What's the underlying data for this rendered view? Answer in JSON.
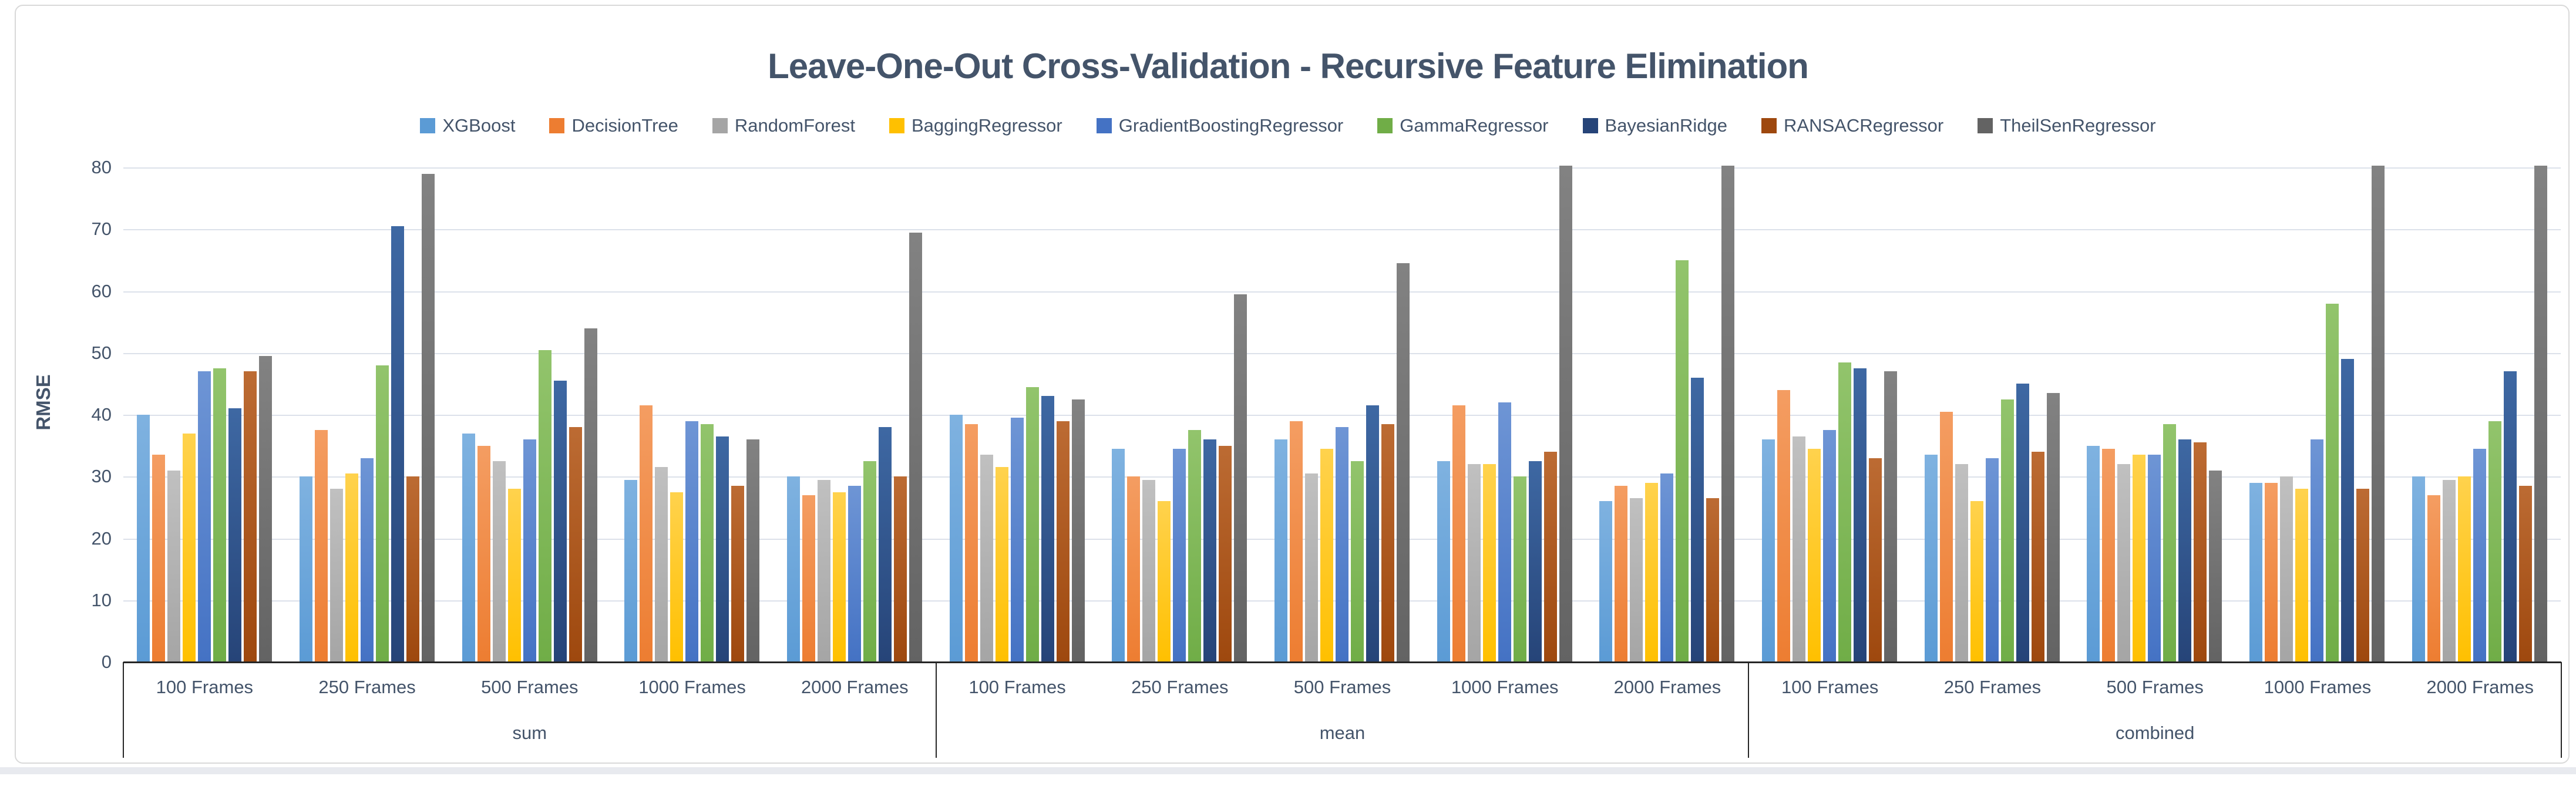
{
  "colors": {
    "text": "#44546A",
    "grid": "#DCE1EA",
    "axis": "#262626",
    "frame_border": "#D9D9D9",
    "background": "#FFFFFF"
  },
  "chart_data": {
    "type": "bar",
    "title": "Leave-One-Out Cross-Validation - Recursive Feature Elimination",
    "xlabel": "",
    "ylabel": "RMSE",
    "ylim": [
      0,
      80
    ],
    "yticks": [
      0,
      10,
      20,
      30,
      40,
      50,
      60,
      70,
      80
    ],
    "grid": true,
    "legend_position": "top",
    "sections": [
      {
        "label": "sum",
        "span": 5
      },
      {
        "label": "mean",
        "span": 5
      },
      {
        "label": "combined",
        "span": 5
      }
    ],
    "groups": [
      {
        "section": "sum",
        "label": "100 Frames"
      },
      {
        "section": "sum",
        "label": "250 Frames"
      },
      {
        "section": "sum",
        "label": "500 Frames"
      },
      {
        "section": "sum",
        "label": "1000 Frames"
      },
      {
        "section": "sum",
        "label": "2000 Frames"
      },
      {
        "section": "mean",
        "label": "100 Frames"
      },
      {
        "section": "mean",
        "label": "250 Frames"
      },
      {
        "section": "mean",
        "label": "500 Frames"
      },
      {
        "section": "mean",
        "label": "1000 Frames"
      },
      {
        "section": "mean",
        "label": "2000 Frames"
      },
      {
        "section": "combined",
        "label": "100 Frames"
      },
      {
        "section": "combined",
        "label": "250 Frames"
      },
      {
        "section": "combined",
        "label": "500 Frames"
      },
      {
        "section": "combined",
        "label": "1000 Frames"
      },
      {
        "section": "combined",
        "label": "2000 Frames"
      }
    ],
    "series": [
      {
        "name": "XGBoost",
        "color": "#5B9BD5",
        "color_light": "#7FB2E0",
        "values": [
          40,
          30,
          37,
          29.5,
          30,
          40,
          34.5,
          36,
          32.5,
          26,
          36,
          33.5,
          35,
          29,
          30
        ]
      },
      {
        "name": "DecisionTree",
        "color": "#ED7D31",
        "color_light": "#F49D62",
        "values": [
          33.5,
          37.5,
          35,
          41.5,
          27,
          38.5,
          30,
          39,
          41.5,
          28.5,
          44,
          40.5,
          34.5,
          29,
          27
        ]
      },
      {
        "name": "RandomForest",
        "color": "#A5A5A5",
        "color_light": "#C0C0C0",
        "values": [
          31,
          28,
          32.5,
          31.5,
          29.5,
          33.5,
          29.5,
          30.5,
          32,
          26.5,
          36.5,
          32,
          32,
          30,
          29.5
        ]
      },
      {
        "name": "BaggingRegressor",
        "color": "#FFC000",
        "color_light": "#FFD24D",
        "values": [
          37,
          30.5,
          28,
          27.5,
          27.5,
          31.5,
          26,
          34.5,
          32,
          29,
          34.5,
          26,
          33.5,
          28,
          30
        ]
      },
      {
        "name": "GradientBoostingRegressor",
        "color": "#4472C4",
        "color_light": "#6E95D5",
        "values": [
          47,
          33,
          36,
          39,
          28.5,
          39.5,
          34.5,
          38,
          42,
          30.5,
          37.5,
          33,
          33.5,
          36,
          34.5
        ]
      },
      {
        "name": "GammaRegressor",
        "color": "#70AD47",
        "color_light": "#92C46C",
        "values": [
          47.5,
          48,
          50.5,
          38.5,
          32.5,
          44.5,
          37.5,
          32.5,
          30,
          65,
          48.5,
          42.5,
          38.5,
          58,
          39
        ]
      },
      {
        "name": "BayesianRidge",
        "color": "#264478",
        "color_light": "#3E68A3",
        "values": [
          41,
          70.5,
          45.5,
          36.5,
          38,
          43,
          36,
          41.5,
          32.5,
          46,
          47.5,
          45,
          36,
          49,
          47
        ]
      },
      {
        "name": "RANSACRegressor",
        "color": "#9E480E",
        "color_light": "#BC6B33",
        "values": [
          47,
          30,
          38,
          28.5,
          30,
          39,
          35,
          38.5,
          34,
          26.5,
          33,
          34,
          35.5,
          28,
          28.5
        ]
      },
      {
        "name": "TheilSenRegressor",
        "color": "#636363",
        "color_light": "#828282",
        "values": [
          49.5,
          79,
          54,
          36,
          69.5,
          42.5,
          59.5,
          64.5,
          80,
          80,
          47,
          43.5,
          31,
          80,
          80
        ]
      }
    ],
    "clipped_bars_at_ymax": [
      "TheilSenRegressor @ mean/1000 Frames",
      "TheilSenRegressor @ mean/2000 Frames",
      "TheilSenRegressor @ combined/1000 Frames",
      "TheilSenRegressor @ combined/2000 Frames"
    ]
  }
}
